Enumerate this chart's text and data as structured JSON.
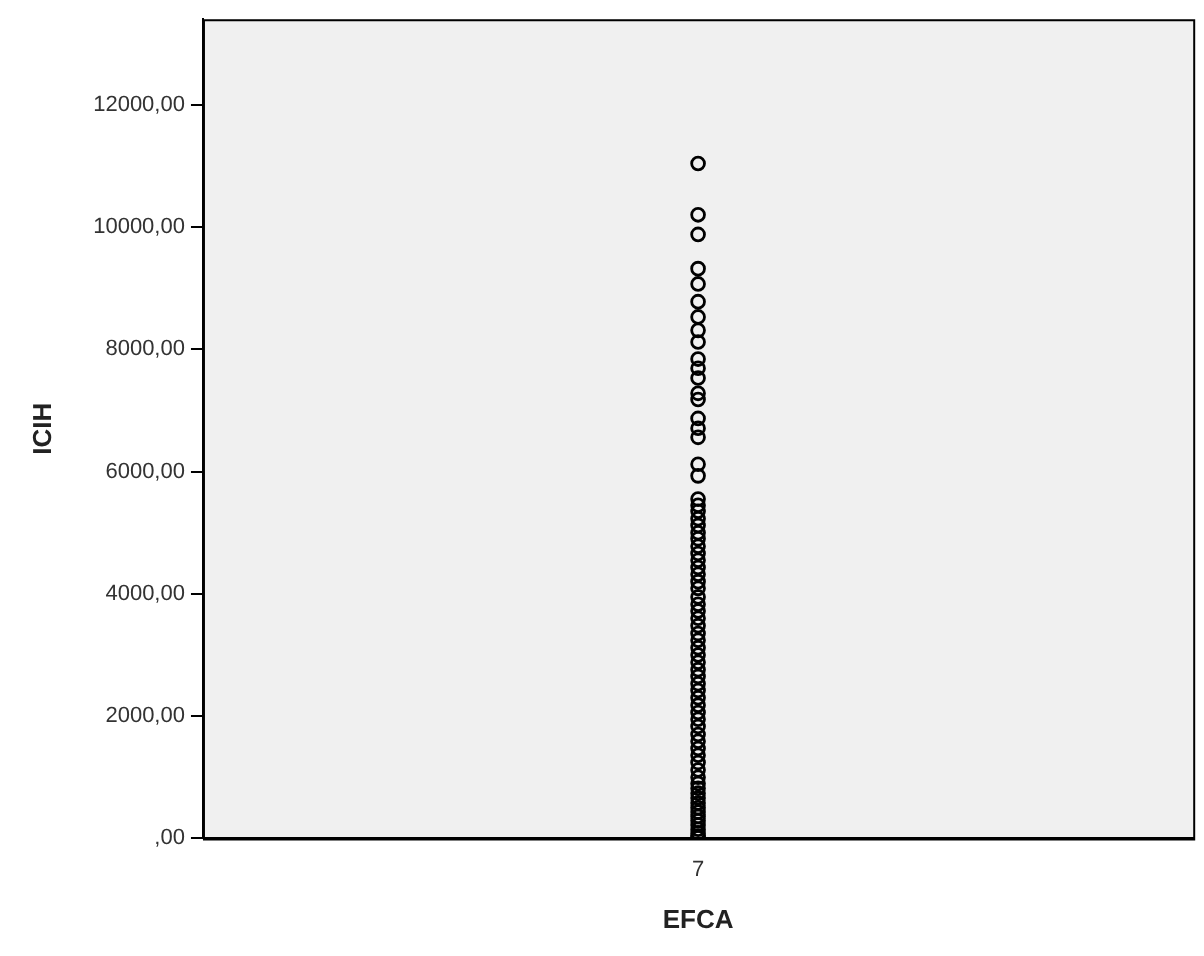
{
  "chart_data": {
    "type": "scatter",
    "xlabel": "EFCA",
    "ylabel": "ICIH",
    "categories": [
      "7"
    ],
    "series": [
      {
        "color": "#000000",
        "x": [
          "7",
          "7",
          "7",
          "7",
          "7",
          "7",
          "7",
          "7",
          "7",
          "7",
          "7",
          "7",
          "7",
          "7",
          "7",
          "7",
          "7",
          "7",
          "7",
          "7",
          "7",
          "7",
          "7",
          "7",
          "7",
          "7",
          "7",
          "7",
          "7",
          "7",
          "7",
          "7",
          "7",
          "7",
          "7",
          "7",
          "7",
          "7",
          "7",
          "7",
          "7",
          "7",
          "7",
          "7",
          "7",
          "7",
          "7",
          "7",
          "7",
          "7",
          "7",
          "7",
          "7",
          "7",
          "7",
          "7",
          "7",
          "7",
          "7",
          "7",
          "7",
          "7",
          "7",
          "7",
          "7",
          "7",
          "7",
          "7",
          "7",
          "7",
          "7",
          "7",
          "7"
        ],
        "values": [
          11040,
          10200,
          9880,
          9320,
          9070,
          8780,
          8530,
          8310,
          8120,
          7840,
          7690,
          7530,
          7280,
          7180,
          6870,
          6710,
          6560,
          6120,
          5930,
          5550,
          5450,
          5350,
          5230,
          5120,
          5000,
          4900,
          4780,
          4660,
          4550,
          4430,
          4320,
          4200,
          4090,
          3950,
          3830,
          3720,
          3600,
          3480,
          3350,
          3240,
          3120,
          3000,
          2880,
          2760,
          2650,
          2530,
          2420,
          2300,
          2180,
          2060,
          1950,
          1830,
          1700,
          1590,
          1470,
          1360,
          1240,
          1120,
          1000,
          900,
          820,
          740,
          660,
          580,
          500,
          430,
          360,
          290,
          220,
          150,
          90,
          40,
          10
        ]
      }
    ],
    "ylim": [
      0,
      13400
    ],
    "yticks": [
      {
        "value": 0,
        "label": ",00"
      },
      {
        "value": 2000,
        "label": "2000,00"
      },
      {
        "value": 4000,
        "label": "4000,00"
      },
      {
        "value": 6000,
        "label": "6000,00"
      },
      {
        "value": 8000,
        "label": "8000,00"
      },
      {
        "value": 10000,
        "label": "10000,00"
      },
      {
        "value": 12000,
        "label": "12000,00"
      }
    ],
    "marker": "circle",
    "grid": false,
    "legend": false
  }
}
